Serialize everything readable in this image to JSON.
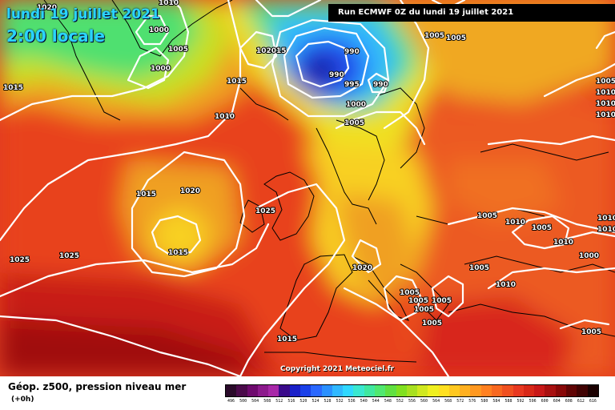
{
  "header": {
    "date": "lundi 19 juillet 2021",
    "time": "2:00 locale",
    "run": "Run ECMWF 0Z du lundi 19 juillet 2021"
  },
  "copyright": "Copyright 2021 Meteociel.fr",
  "footer": {
    "parameter": "Géop. z500, pression niveau mer",
    "lead": "(+0h)"
  },
  "scale": {
    "colors": [
      "#2a0a2a",
      "#4a0a4a",
      "#6e0a6e",
      "#8c1a8c",
      "#a828a8",
      "#3a0a8a",
      "#1a20c8",
      "#1a40e8",
      "#2a68ff",
      "#2a90ff",
      "#30b8ff",
      "#30d8ff",
      "#3ae8d0",
      "#40e8a0",
      "#50e870",
      "#60e040",
      "#80e020",
      "#a8e020",
      "#d0e820",
      "#f0f020",
      "#ffe020",
      "#ffc820",
      "#ffb020",
      "#ff9820",
      "#ff8020",
      "#f86820",
      "#f05020",
      "#e83820",
      "#d82818",
      "#c81818",
      "#a81010",
      "#880808",
      "#600404",
      "#400202",
      "#1a0000"
    ],
    "labels": [
      "496",
      "500",
      "504",
      "508",
      "512",
      "516",
      "520",
      "524",
      "528",
      "532",
      "536",
      "540",
      "544",
      "548",
      "552",
      "556",
      "560",
      "564",
      "568",
      "572",
      "576",
      "580",
      "584",
      "588",
      "592",
      "596",
      "600",
      "604",
      "608",
      "612",
      "616"
    ]
  },
  "isobars": [
    {
      "v": "1020"
    },
    {
      "v": "1010"
    },
    {
      "v": "1000"
    },
    {
      "v": "1005"
    },
    {
      "v": "1000"
    },
    {
      "v": "102015"
    },
    {
      "v": "1015"
    },
    {
      "v": "1015"
    },
    {
      "v": "1010"
    },
    {
      "v": "990"
    },
    {
      "v": "990"
    },
    {
      "v": "995"
    },
    {
      "v": "990"
    },
    {
      "v": "1000"
    },
    {
      "v": "1005"
    },
    {
      "v": "1005"
    },
    {
      "v": "1005"
    },
    {
      "v": "1005"
    },
    {
      "v": "1010"
    },
    {
      "v": "1010"
    },
    {
      "v": "1010"
    },
    {
      "v": "1015"
    },
    {
      "v": "1020"
    },
    {
      "v": "1025"
    },
    {
      "v": "1015"
    },
    {
      "v": "1025"
    },
    {
      "v": "1025"
    },
    {
      "v": "1020"
    },
    {
      "v": "1005"
    },
    {
      "v": "1010"
    },
    {
      "v": "1005"
    },
    {
      "v": "1010"
    },
    {
      "v": "1010"
    },
    {
      "v": "1010"
    },
    {
      "v": "1000"
    },
    {
      "v": "1005"
    },
    {
      "v": "1010"
    },
    {
      "v": "1005"
    },
    {
      "v": "1005"
    },
    {
      "v": "1005"
    },
    {
      "v": "1005"
    },
    {
      "v": "1005"
    },
    {
      "v": "1015"
    },
    {
      "v": "1005"
    }
  ]
}
